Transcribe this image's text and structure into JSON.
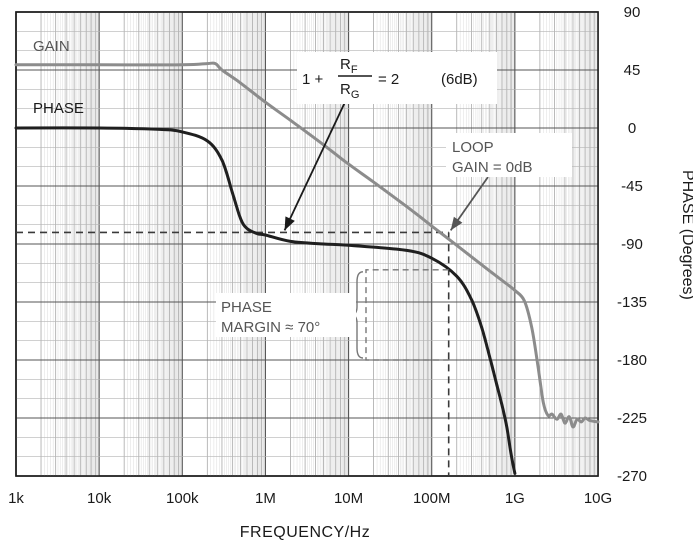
{
  "chart_data": {
    "type": "line",
    "xlabel": "FREQUENCY/Hz",
    "ylabel": "PHASE (Degrees)",
    "x_scale": "log",
    "xlim": [
      1000,
      10000000000
    ],
    "ylim": [
      -270,
      90
    ],
    "x_ticks": [
      {
        "value": 1000,
        "label": "1k"
      },
      {
        "value": 10000,
        "label": "10k"
      },
      {
        "value": 100000,
        "label": "100k"
      },
      {
        "value": 1000000,
        "label": "1M"
      },
      {
        "value": 10000000,
        "label": "10M"
      },
      {
        "value": 100000000,
        "label": "100M"
      },
      {
        "value": 1000000000,
        "label": "1G"
      },
      {
        "value": 10000000000,
        "label": "10G"
      }
    ],
    "y_ticks": [
      {
        "value": 90,
        "label": "90"
      },
      {
        "value": 45,
        "label": "45"
      },
      {
        "value": 0,
        "label": "0"
      },
      {
        "value": -45,
        "label": "-45"
      },
      {
        "value": -90,
        "label": "-90"
      },
      {
        "value": -135,
        "label": "-135"
      },
      {
        "value": -180,
        "label": "-180"
      },
      {
        "value": -225,
        "label": "-225"
      },
      {
        "value": -270,
        "label": "-270"
      }
    ],
    "grid": true,
    "series": [
      {
        "name": "GAIN",
        "color": "#8c8c8c",
        "points": [
          [
            1000,
            49
          ],
          [
            10000,
            49
          ],
          [
            100000,
            49
          ],
          [
            200000,
            50
          ],
          [
            250000,
            50
          ],
          [
            300000,
            45
          ],
          [
            500000,
            35
          ],
          [
            1000000,
            20
          ],
          [
            2000000,
            6
          ],
          [
            5000000,
            -13
          ],
          [
            10000000,
            -28
          ],
          [
            20000000,
            -42
          ],
          [
            50000000,
            -61
          ],
          [
            100000000,
            -76
          ],
          [
            200000000,
            -91
          ],
          [
            500000000,
            -111
          ],
          [
            800000000,
            -121
          ],
          [
            1000000000,
            -126
          ],
          [
            1300000000,
            -134
          ],
          [
            1600000000,
            -155
          ],
          [
            1900000000,
            -185
          ],
          [
            2200000000,
            -213
          ],
          [
            2500000000,
            -223
          ],
          [
            2800000000,
            -222
          ],
          [
            3200000000,
            -226
          ],
          [
            3600000000,
            -222
          ],
          [
            4000000000,
            -229
          ],
          [
            4500000000,
            -224
          ],
          [
            5000000000,
            -232
          ],
          [
            5600000000,
            -226
          ],
          [
            6300000000,
            -228
          ],
          [
            7000000000,
            -225
          ],
          [
            8000000000,
            -227
          ],
          [
            10000000000,
            -228
          ]
        ]
      },
      {
        "name": "PHASE",
        "color": "#1f1f1f",
        "points": [
          [
            1000,
            0
          ],
          [
            10000,
            0
          ],
          [
            50000,
            -1
          ],
          [
            100000,
            -3
          ],
          [
            200000,
            -10
          ],
          [
            300000,
            -25
          ],
          [
            400000,
            -50
          ],
          [
            500000,
            -70
          ],
          [
            600000,
            -78
          ],
          [
            800000,
            -82
          ],
          [
            1000000,
            -83
          ],
          [
            2000000,
            -88
          ],
          [
            5000000,
            -90
          ],
          [
            10000000,
            -91
          ],
          [
            50000000,
            -95
          ],
          [
            100000000,
            -101
          ],
          [
            200000000,
            -115
          ],
          [
            300000000,
            -133
          ],
          [
            400000000,
            -155
          ],
          [
            500000000,
            -178
          ],
          [
            600000000,
            -198
          ],
          [
            700000000,
            -215
          ],
          [
            800000000,
            -232
          ],
          [
            900000000,
            -253
          ],
          [
            1000000000,
            -268
          ]
        ]
      }
    ],
    "reference_lines": [
      {
        "y": -81,
        "x_from": 1000,
        "x_to": 160000000
      },
      {
        "x": 160000000,
        "y_from": -81,
        "y_to": -270
      }
    ],
    "annotations": {
      "gain_label": "GAIN",
      "phase_label": "PHASE",
      "formula_lhs": "1 +",
      "formula_num": "R",
      "formula_num_sub": "F",
      "formula_den": "R",
      "formula_den_sub": "G",
      "formula_rhs": "= 2",
      "formula_db": "(6dB)",
      "loop_line1": "LOOP",
      "loop_line2": "GAIN = 0dB",
      "pm_line1": "PHASE",
      "pm_line2": "MARGIN ≈ 70°"
    }
  }
}
